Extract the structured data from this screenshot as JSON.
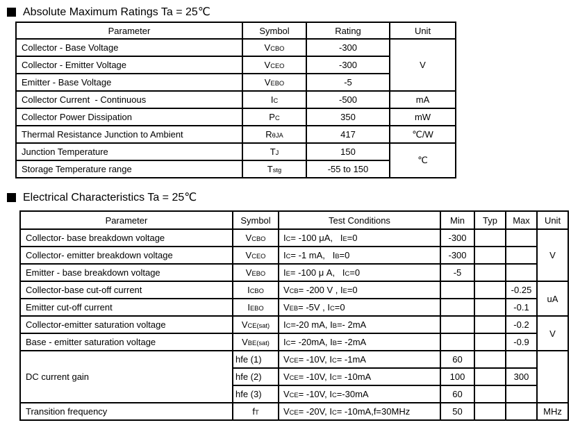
{
  "sections": {
    "abs_max_title": "Absolute Maximum Ratings Ta = 25℃",
    "elec_title": "Electrical Characteristics Ta = 25℃"
  },
  "abs_max": {
    "headers": [
      "Parameter",
      "Symbol",
      "Rating",
      "Unit"
    ],
    "rows": [
      {
        "parameter": "Collector - Base Voltage",
        "symbol": "V~CBO~",
        "rating": "-300",
        "unit": "V"
      },
      {
        "parameter": "Collector - Emitter Voltage",
        "symbol": "V~CEO~",
        "rating": "-300"
      },
      {
        "parameter": "Emitter - Base Voltage",
        "symbol": "V~EBO~",
        "rating": "-5"
      },
      {
        "parameter": "Collector Current  - Continuous",
        "symbol": "I~C~",
        "rating": "-500",
        "unit": "mA"
      },
      {
        "parameter": "Collector Power Dissipation",
        "symbol": "P~C~",
        "rating": "350",
        "unit": "mW"
      },
      {
        "parameter": "Thermal Resistance Junction to Ambient",
        "symbol": "R~θJA~",
        "rating": "417",
        "unit": "℃/W"
      },
      {
        "parameter": "Junction Temperature",
        "symbol": "T~J~",
        "rating": "150",
        "unit": "℃"
      },
      {
        "parameter": "Storage Temperature range",
        "symbol": "T~stg~",
        "rating": "-55 to 150"
      }
    ]
  },
  "elec": {
    "headers": [
      "Parameter",
      "Symbol",
      "Test Conditions",
      "Min",
      "Typ",
      "Max",
      "Unit"
    ],
    "rows": [
      {
        "parameter": "Collector- base breakdown voltage",
        "symbol": "V~CBO~",
        "conditions": "I~C~= -100 μA,   I~E~=0",
        "min": "-300",
        "unit": "V"
      },
      {
        "parameter": "Collector- emitter breakdown voltage",
        "symbol": "V~CEO~",
        "conditions": "I~C~= -1 mA,   I~B~=0",
        "min": "-300"
      },
      {
        "parameter": "Emitter - base breakdown voltage",
        "symbol": "V~EBO~",
        "conditions": "I~E~= -100 μ A,   I~C~=0",
        "min": "-5"
      },
      {
        "parameter": "Collector-base cut-off current",
        "symbol": "I~CBO~",
        "conditions": "V~CB~= -200 V , I~E~=0",
        "max": "-0.25",
        "unit": "uA"
      },
      {
        "parameter": "Emitter cut-off current",
        "symbol": "I~EBO~",
        "conditions": "V~EB~= -5V , I~C~=0",
        "max": "-0.1"
      },
      {
        "parameter": "Collector-emitter saturation voltage",
        "symbol": "V~CE(sat)~",
        "conditions": "I~C~=-20 mA, I~B~=- 2mA",
        "max": "-0.2",
        "unit": "V"
      },
      {
        "parameter": "Base - emitter saturation voltage",
        "symbol": "V~BE(sat)~",
        "conditions": "I~C~= -20mA, I~B~= -2mA",
        "max": "-0.9"
      },
      {
        "parameter": "DC current gain",
        "symbol": "hfe (1)",
        "conditions": "V~CE~= -10V, I~C~= -1mA",
        "min": "60",
        "unit": ""
      },
      {
        "parameter": "",
        "symbol": "hfe (2)",
        "conditions": "V~CE~= -10V, I~C~= -10mA",
        "min": "100",
        "max": "300"
      },
      {
        "parameter": "",
        "symbol": "hfe (3)",
        "conditions": "V~CE~= -10V, I~C~=-30mA",
        "min": "60"
      },
      {
        "parameter": "Transition frequency",
        "symbol": "f~T~",
        "conditions": "V~CE~= -20V, I~C~= -10mA,f=30MHz",
        "min": "50",
        "unit": "MHz"
      }
    ]
  }
}
